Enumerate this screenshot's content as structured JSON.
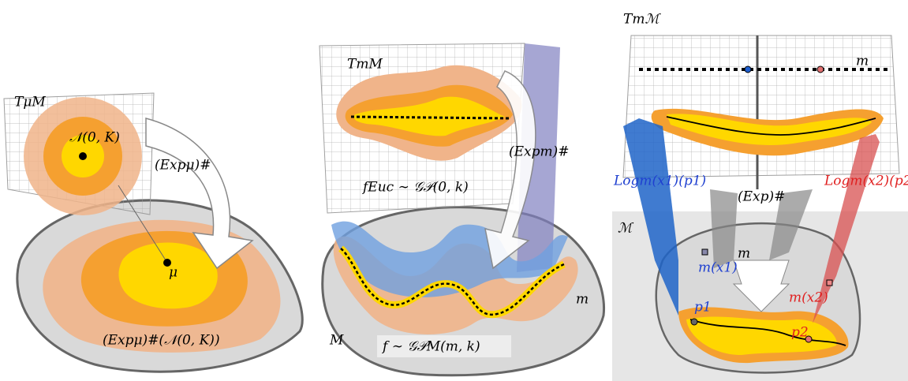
{
  "panels": [
    {
      "labels": [
        "TμM",
        "𝒩(0, K)",
        "(Expμ)#",
        "μ",
        "(Expμ)#(𝒩(0, K))"
      ]
    },
    {
      "labels": [
        "TmM",
        "(Expm)#",
        "fEuc ∼ 𝒢𝒫(0, k)",
        "M",
        "m",
        "f ∼ 𝒢𝒫M(m, k)"
      ]
    },
    {
      "labels": [
        "Tmℳ",
        "m",
        "Logm(x1)(p1)",
        "Logm(x2)(p2)",
        "(Exp)#",
        "ℳ",
        "m(x1)",
        "m",
        "m(x2)",
        "p1",
        "p2"
      ]
    }
  ]
}
